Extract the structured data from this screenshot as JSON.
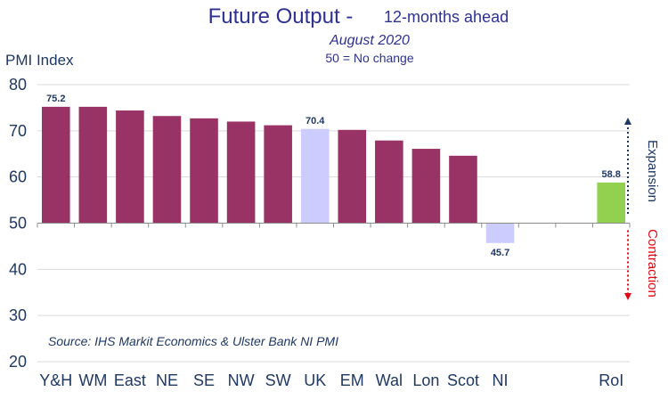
{
  "chart_data": {
    "type": "bar",
    "title": "Future Output - ",
    "title_suffix": "12-months ahead",
    "subtitle": "August 2020",
    "note": "50 = No change",
    "ylabel": "PMI Index",
    "xlabel": "",
    "ylim": [
      20,
      80
    ],
    "yticks": [
      "20",
      "30",
      "40",
      "50",
      "60",
      "70",
      "80"
    ],
    "baseline": 50,
    "grid": true,
    "categories": [
      "Y&H",
      "WM",
      "East",
      "NE",
      "SE",
      "NW",
      "SW",
      "UK",
      "EM",
      "Wal",
      "Lon",
      "Scot",
      "NI",
      "",
      "",
      "RoI"
    ],
    "values": [
      75.2,
      75.2,
      74.4,
      73.2,
      72.7,
      72.0,
      71.2,
      70.4,
      70.2,
      67.9,
      66.1,
      64.6,
      45.7,
      null,
      null,
      58.8
    ],
    "data_labels": [
      {
        "index": 0,
        "text": "75.2"
      },
      {
        "index": 7,
        "text": "70.4"
      },
      {
        "index": 12,
        "text": "45.7"
      },
      {
        "index": 15,
        "text": "58.8"
      }
    ],
    "source": "Source: IHS Markit Economics & Ulster Bank NI PMI",
    "annotations": {
      "up": "Expansion",
      "down": "Contraction"
    },
    "colors": {
      "regions": "#993366",
      "uk": "#ccccff",
      "ni": "#ccccff",
      "roi": "#92d050",
      "title": "#2e3192",
      "text": "#1f3864",
      "expansion": "#1f3864",
      "contraction": "#e30613"
    }
  }
}
